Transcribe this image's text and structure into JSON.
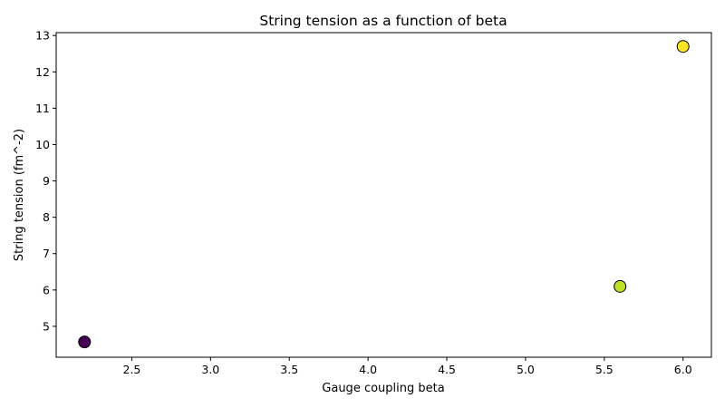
{
  "chart_data": {
    "type": "scatter",
    "title": "String tension as a function of beta",
    "xlabel": "Gauge coupling beta",
    "ylabel": "String tension (fm^-2)",
    "xlim": [
      2.02,
      6.18
    ],
    "ylim": [
      4.15,
      13.08
    ],
    "xticks": [
      2.5,
      3.0,
      3.5,
      4.0,
      4.5,
      5.0,
      5.5,
      6.0
    ],
    "xtick_labels": [
      "2.5",
      "3.0",
      "3.5",
      "4.0",
      "4.5",
      "5.0",
      "5.5",
      "6.0"
    ],
    "yticks": [
      5,
      6,
      7,
      8,
      9,
      10,
      11,
      12,
      13
    ],
    "ytick_labels": [
      "5",
      "6",
      "7",
      "8",
      "9",
      "10",
      "11",
      "12",
      "13"
    ],
    "grid": false,
    "points": [
      {
        "x": 2.2,
        "y": 4.57,
        "color": "#440154"
      },
      {
        "x": 5.6,
        "y": 6.1,
        "color": "#bddf26"
      },
      {
        "x": 6.0,
        "y": 12.7,
        "color": "#fde725"
      }
    ],
    "marker_edge_color": "#000000"
  }
}
